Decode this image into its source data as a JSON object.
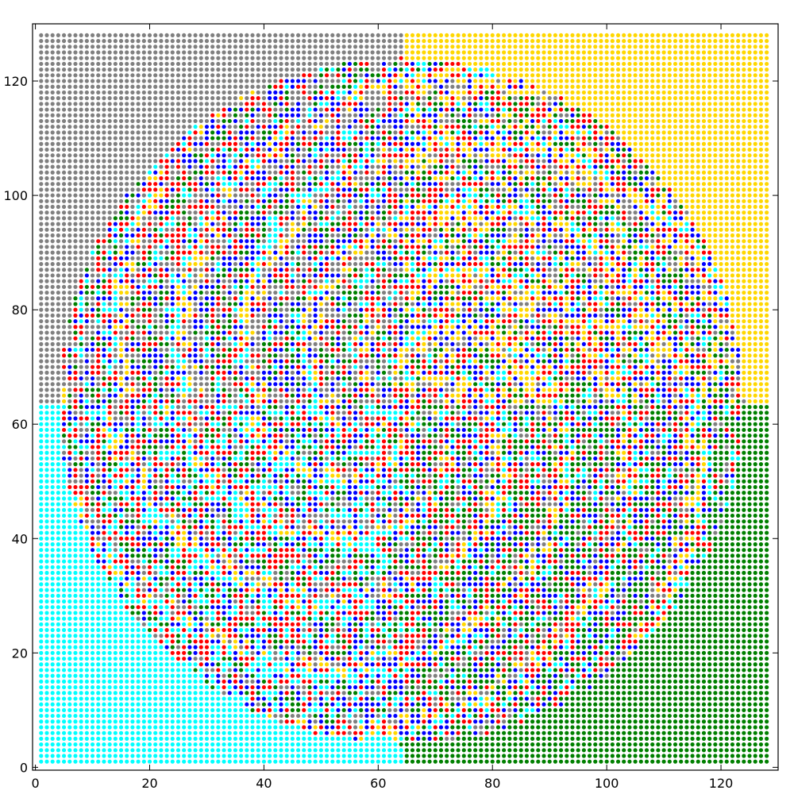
{
  "chart_data": {
    "type": "scatter",
    "title": "",
    "xlabel": "",
    "ylabel": "",
    "xlim": [
      -0.5,
      130
    ],
    "ylim": [
      -0.5,
      130
    ],
    "grid": false,
    "legend": "none",
    "x_ticks": [
      0,
      20,
      40,
      60,
      80,
      100,
      120
    ],
    "x_tick_labels": [
      "0",
      "20",
      "40",
      "60",
      "80",
      "100",
      "120"
    ],
    "y_ticks": [
      0,
      20,
      40,
      60,
      80,
      100,
      120
    ],
    "y_tick_labels": [
      "0",
      "20",
      "40",
      "60",
      "80",
      "100",
      "120"
    ],
    "grid_points": {
      "x_min": 1,
      "x_max": 128,
      "y_min": 1,
      "y_max": 128,
      "step": 1
    },
    "palette": {
      "gray": "#808080",
      "gold": "#ffd700",
      "cyan": "#00ffff",
      "green": "#008000",
      "red": "#ff0000",
      "blue": "#0000ff"
    },
    "regions": {
      "center": [
        64,
        64
      ],
      "chaotic_radius": 60,
      "quadrant_colors": {
        "upper_left": "gray",
        "upper_right": "gold",
        "lower_left": "cyan",
        "lower_right": "green"
      },
      "ring_mix_colors": [
        "gray",
        "gold",
        "cyan",
        "green",
        "red",
        "blue"
      ]
    }
  }
}
